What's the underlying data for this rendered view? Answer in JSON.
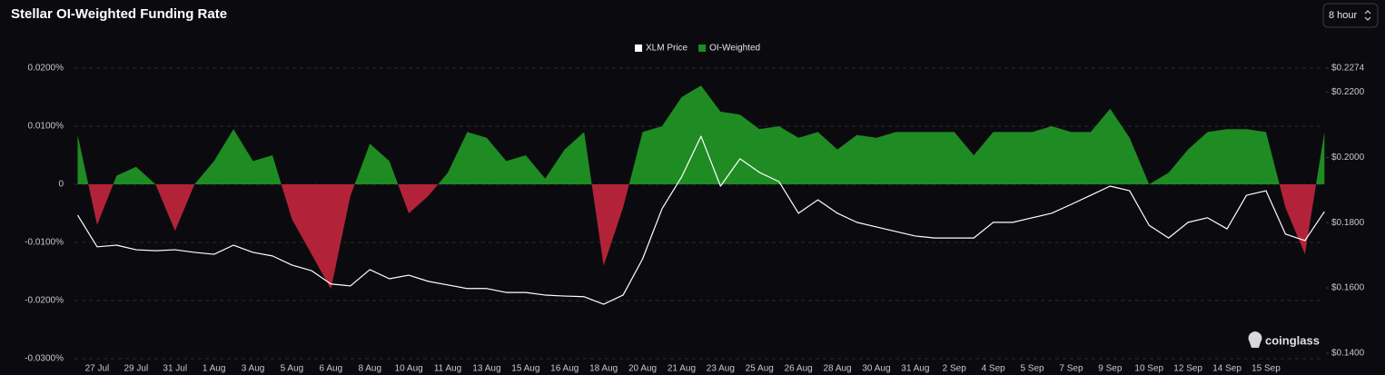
{
  "chart_data": {
    "type": "area",
    "title": "Stellar OI-Weighted Funding Rate",
    "categories": [
      null,
      "27 Jul",
      null,
      "29 Jul",
      null,
      "31 Jul",
      null,
      "1 Aug",
      null,
      "3 Aug",
      null,
      "5 Aug",
      null,
      "6 Aug",
      null,
      "8 Aug",
      null,
      "10 Aug",
      null,
      "11 Aug",
      null,
      "13 Aug",
      null,
      "15 Aug",
      null,
      "16 Aug",
      null,
      "18 Aug",
      null,
      "20 Aug",
      null,
      "21 Aug",
      null,
      "23 Aug",
      null,
      "25 Aug",
      null,
      "26 Aug",
      null,
      "28 Aug",
      null,
      "30 Aug",
      null,
      "31 Aug",
      null,
      "2 Sep",
      null,
      "4 Sep",
      null,
      "5 Sep",
      null,
      "7 Sep",
      null,
      "9 Sep",
      null,
      "10 Sep",
      null,
      "12 Sep",
      null,
      "14 Sep",
      null,
      "15 Sep",
      null,
      null,
      null
    ],
    "series": [
      {
        "name": "XLM Price",
        "type": "line",
        "axis": "y2",
        "color": "#ffffff",
        "values": [
          0.1823,
          0.1726,
          0.1731,
          0.1717,
          0.1714,
          0.1717,
          0.1709,
          0.1703,
          0.1731,
          0.1709,
          0.1698,
          0.167,
          0.1653,
          0.1612,
          0.1606,
          0.1656,
          0.1628,
          0.1639,
          0.162,
          0.1609,
          0.1598,
          0.1598,
          0.1586,
          0.1586,
          0.1578,
          0.1575,
          0.1573,
          0.155,
          0.1578,
          0.1689,
          0.1843,
          0.194,
          0.2065,
          0.1912,
          0.1996,
          0.1954,
          0.1926,
          0.1829,
          0.187,
          0.1829,
          0.1801,
          0.1787,
          0.1773,
          0.1759,
          0.1753,
          0.1753,
          0.1753,
          0.1801,
          0.1801,
          0.1815,
          0.1829,
          0.1856,
          0.1884,
          0.1912,
          0.1898,
          0.1792,
          0.1753,
          0.1801,
          0.1815,
          0.1781,
          0.1884,
          0.1898,
          0.1765,
          0.1745,
          0.1834
        ]
      },
      {
        "name": "OI-Weighted",
        "type": "area",
        "color": "#1f8b23",
        "negative_color": "#b2233a",
        "values": [
          0.0085,
          -0.007,
          0.0015,
          0.003,
          0.0,
          -0.008,
          0.0,
          0.004,
          0.0095,
          0.004,
          0.005,
          -0.006,
          -0.012,
          -0.018,
          -0.002,
          0.007,
          0.004,
          -0.005,
          -0.002,
          0.002,
          0.009,
          0.008,
          0.004,
          0.005,
          0.001,
          0.006,
          0.009,
          -0.014,
          -0.004,
          0.009,
          0.01,
          0.015,
          0.017,
          0.0125,
          0.012,
          0.0095,
          0.01,
          0.008,
          0.009,
          0.006,
          0.0085,
          0.008,
          0.009,
          0.009,
          0.009,
          0.009,
          0.005,
          0.009,
          0.009,
          0.009,
          0.01,
          0.009,
          0.009,
          0.013,
          0.008,
          0.0,
          0.002,
          0.006,
          0.009,
          0.0095,
          0.0095,
          0.009,
          -0.004,
          -0.012,
          0.009
        ]
      }
    ],
    "ylim": [
      -0.03,
      0.02
    ],
    "yticks": [
      {
        "value": 0.02,
        "label": "0.0200%"
      },
      {
        "value": 0.01,
        "label": "0.0100%"
      },
      0,
      {
        "value": -0.01,
        "label": "-0.0100%"
      },
      {
        "value": -0.02,
        "label": "-0.0200%"
      },
      {
        "value": -0.03,
        "label": "-0.0300%"
      }
    ],
    "y2lim": [
      0.1383,
      0.2274
    ],
    "y2ticks": [
      {
        "value": 0.2274,
        "label": "$0.2274"
      },
      {
        "value": 0.22,
        "label": "$0.2200"
      },
      {
        "value": 0.2,
        "label": "$0.2000"
      },
      {
        "value": 0.18,
        "label": "$0.1800"
      },
      {
        "value": 0.16,
        "label": "$0.1600"
      },
      {
        "value": 0.14,
        "label": "$0.1400"
      }
    ],
    "grid": true,
    "legend": "top"
  },
  "interval_selector": "8 hour",
  "watermark": "coinglass"
}
